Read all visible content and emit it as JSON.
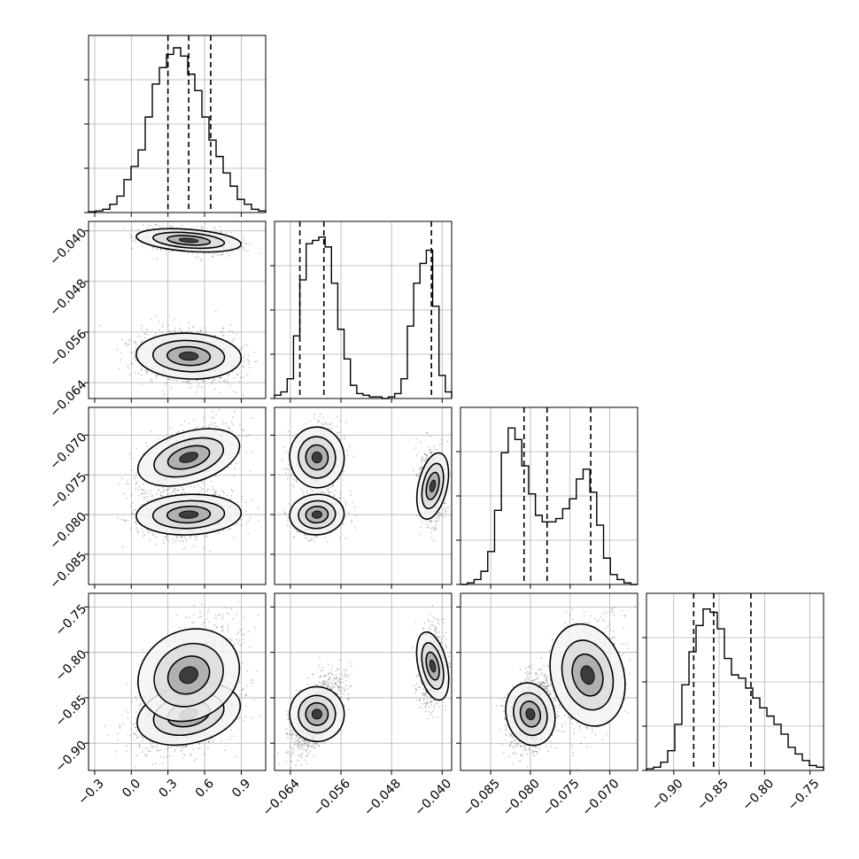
{
  "chart_data": {
    "type": "corner",
    "description_of_parameters": "4 parameters; diagonal = 1D histograms with dashed quantile lines, off-diagonal = 2D density scatter with contours",
    "grid": true,
    "parameters": [
      {
        "range": [
          -0.35,
          1.1
        ],
        "ticks": [
          -0.3,
          0.0,
          0.3,
          0.6,
          0.9
        ],
        "tick_labels": [
          "−0.3",
          "0.0",
          "0.3",
          "0.6",
          "0.9"
        ],
        "quantiles": [
          0.3,
          0.47,
          0.65
        ],
        "modes": [
          {
            "mu": 0.47,
            "sd": 0.17,
            "w": 1.0
          }
        ],
        "hist": [
          0.005,
          0.01,
          0.02,
          0.05,
          0.1,
          0.2,
          0.28,
          0.38,
          0.58,
          0.78,
          0.88,
          0.96,
          1.0,
          0.95,
          0.84,
          0.74,
          0.58,
          0.44,
          0.34,
          0.24,
          0.16,
          0.08,
          0.05,
          0.02,
          0.01
        ]
      },
      {
        "range": [
          -0.0665,
          -0.0385
        ],
        "ticks": [
          -0.064,
          -0.056,
          -0.048,
          -0.04
        ],
        "tick_labels": [
          "−0.064",
          "−0.056",
          "−0.048",
          "−0.040"
        ],
        "quantiles": [
          -0.0625,
          -0.0587,
          -0.0417
        ],
        "modes": [
          {
            "mu": -0.0598,
            "sd": 0.0017,
            "w": 0.65
          },
          {
            "mu": -0.0415,
            "sd": 0.0009,
            "w": 0.35
          }
        ],
        "hist": [
          0.02,
          0.04,
          0.12,
          0.38,
          0.72,
          0.94,
          0.96,
          0.98,
          0.92,
          0.7,
          0.42,
          0.24,
          0.08,
          0.03,
          0.02,
          0.01,
          0.01,
          0.0,
          0.01,
          0.03,
          0.12,
          0.44,
          0.7,
          0.82,
          0.9,
          0.56,
          0.14,
          0.04
        ]
      },
      {
        "range": [
          -0.0888,
          -0.0665
        ],
        "ticks": [
          -0.085,
          -0.08,
          -0.075,
          -0.07
        ],
        "tick_labels": [
          "−0.085",
          "−0.080",
          "−0.075",
          "−0.070"
        ],
        "quantiles": [
          -0.0808,
          -0.0779,
          -0.0724
        ],
        "modes": [
          {
            "mu": -0.08,
            "sd": 0.0012,
            "w": 0.55
          },
          {
            "mu": -0.0728,
            "sd": 0.0018,
            "w": 0.45
          }
        ],
        "hist": [
          0.0,
          0.01,
          0.03,
          0.08,
          0.2,
          0.45,
          0.8,
          0.95,
          0.88,
          0.72,
          0.55,
          0.42,
          0.38,
          0.38,
          0.4,
          0.46,
          0.52,
          0.64,
          0.7,
          0.56,
          0.36,
          0.16,
          0.06,
          0.03,
          0.01,
          0.0
        ]
      },
      {
        "range": [
          -0.93,
          -0.735
        ],
        "ticks": [
          -0.9,
          -0.85,
          -0.8,
          -0.75
        ],
        "tick_labels": [
          "−0.90",
          "−0.85",
          "−0.80",
          "−0.75"
        ],
        "quantiles": [
          -0.878,
          -0.856,
          -0.815
        ],
        "modes": [
          {
            "mu": -0.868,
            "sd": 0.017,
            "w": 0.62
          },
          {
            "mu": -0.825,
            "sd": 0.028,
            "w": 0.38
          }
        ],
        "hist": [
          0.01,
          0.02,
          0.05,
          0.12,
          0.28,
          0.52,
          0.72,
          0.88,
          0.98,
          0.96,
          0.86,
          0.68,
          0.58,
          0.56,
          0.5,
          0.44,
          0.38,
          0.33,
          0.28,
          0.22,
          0.14,
          0.1,
          0.06,
          0.03,
          0.02
        ]
      }
    ],
    "pair_correlations": {
      "1-0": [
        -0.1,
        -0.35
      ],
      "2-0": [
        0.1,
        0.55
      ],
      "2-1": [
        0.2,
        0.1
      ],
      "3-0": [
        0.4,
        0.6
      ],
      "3-1": [
        0.55,
        0.1
      ],
      "3-2": [
        0.2,
        0.1
      ]
    }
  }
}
